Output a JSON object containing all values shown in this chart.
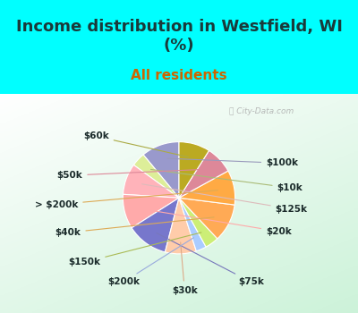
{
  "title": "Income distribution in Westfield, WI\n(%)",
  "subtitle": "All residents",
  "title_color": "#1a3a3a",
  "subtitle_color": "#cc6600",
  "background_top": "#00ffff",
  "watermark": "City-Data.com",
  "labels": [
    "$100k",
    "$10k",
    "$125k",
    "$20k",
    "$75k",
    "$30k",
    "$200k",
    "$150k",
    "$40k",
    "> $200k",
    "$50k",
    "$60k"
  ],
  "sizes": [
    11,
    4,
    9,
    10,
    12,
    9,
    3,
    4,
    11,
    10,
    8,
    9
  ],
  "colors": [
    "#9999cc",
    "#ddee99",
    "#ffb3ba",
    "#ffaaaa",
    "#7777cc",
    "#ffccaa",
    "#aaccff",
    "#ccee77",
    "#ffaa55",
    "#ffaa44",
    "#dd8899",
    "#bbaa22"
  ],
  "startangle": 90,
  "label_fontsize": 7.5,
  "title_fontsize": 13,
  "subtitle_fontsize": 11
}
